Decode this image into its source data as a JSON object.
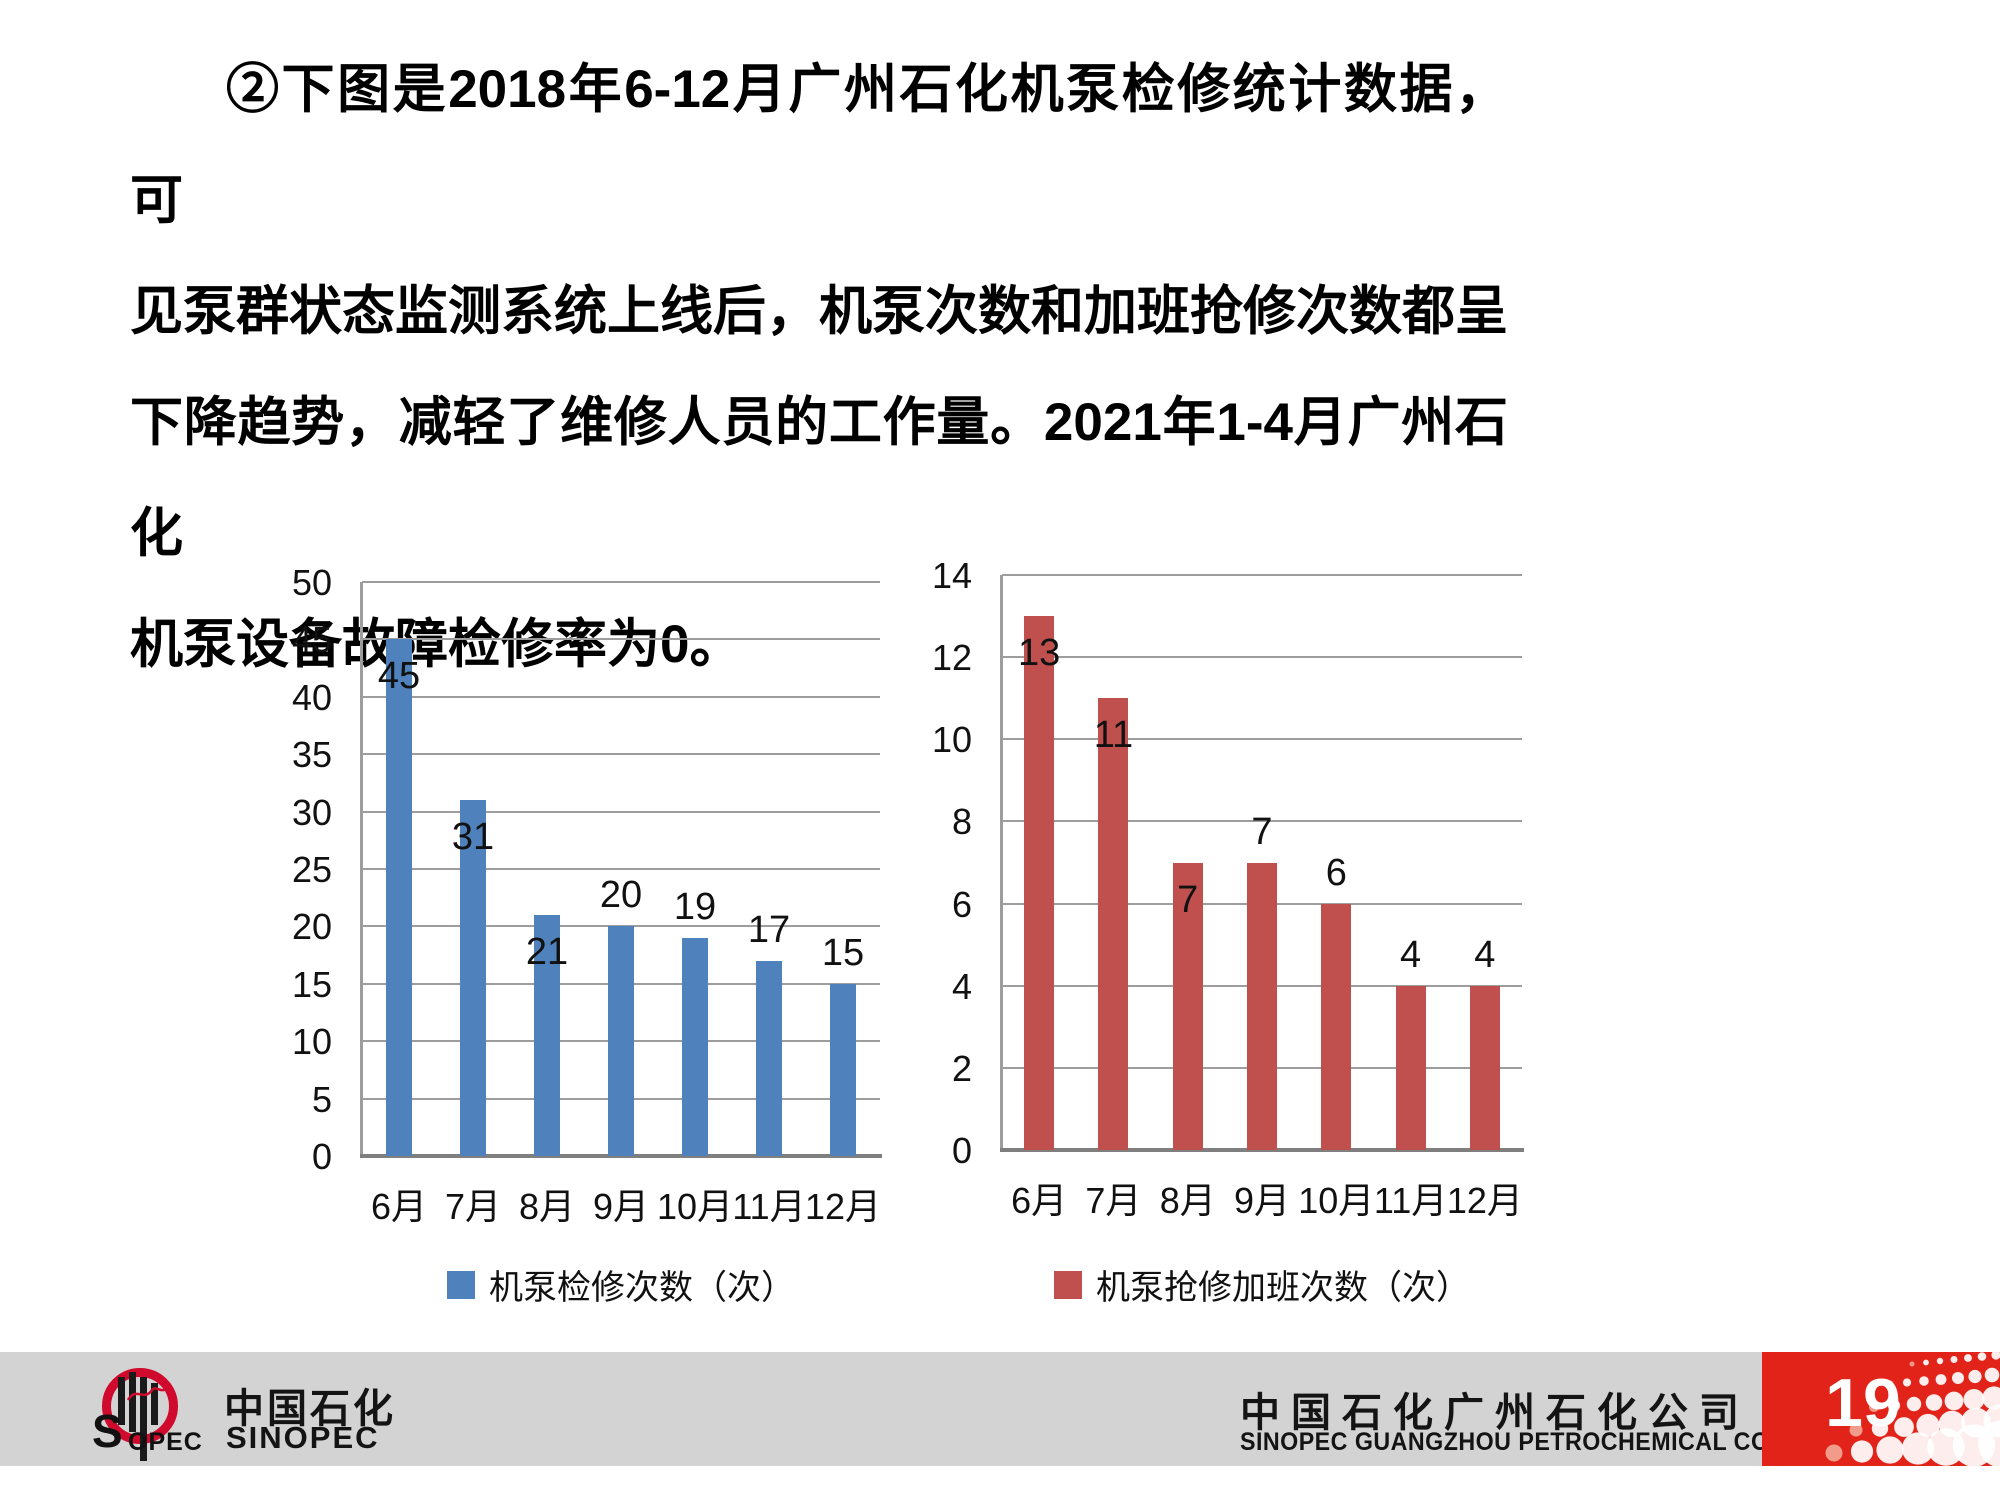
{
  "paragraph": {
    "lines": [
      "②下图是2018年6-12月广州石化机泵检修统计数据，可",
      "见泵群状态监测系统上线后，机泵次数和加班抢修次数都呈",
      "下降趋势，减轻了维修人员的工作量。2021年1-4月广州石化",
      "机泵设备故障检修率为0。"
    ]
  },
  "chart_data": [
    {
      "type": "bar",
      "title": "",
      "categories": [
        "6月",
        "7月",
        "8月",
        "9月",
        "10月",
        "11月",
        "12月"
      ],
      "values": [
        45,
        31,
        21,
        20,
        19,
        17,
        15
      ],
      "series_name": "机泵检修次数（次）",
      "bar_color": "#4f81bd",
      "ylim": [
        0,
        50
      ],
      "ytick_step": 5,
      "grid": true,
      "data_labels": true,
      "label_placement": [
        "inside",
        "inside",
        "inside",
        "outside",
        "outside",
        "outside",
        "outside"
      ],
      "legend_position": "bottom"
    },
    {
      "type": "bar",
      "title": "",
      "categories": [
        "6月",
        "7月",
        "8月",
        "9月",
        "10月",
        "11月",
        "12月"
      ],
      "values": [
        13,
        11,
        7,
        7,
        6,
        4,
        4
      ],
      "series_name": "机泵抢修加班次数（次）",
      "bar_color": "#c0504d",
      "ylim": [
        0,
        14
      ],
      "ytick_step": 2,
      "grid": true,
      "data_labels": true,
      "label_placement": [
        "inside",
        "inside",
        "inside",
        "outside",
        "outside",
        "outside",
        "outside"
      ],
      "legend_position": "bottom"
    }
  ],
  "colors": {
    "gridline": "#9d9d9d",
    "axis": "#7f7f7f",
    "text": "#000000",
    "footer_band": "#d3d3d3",
    "footer_accent_red": "#e2231a",
    "page_number_color": "#ffffff",
    "logo_red": "#cf0a2c"
  },
  "footer": {
    "logo": {
      "cn": "中国石化",
      "en": "SINOPEC",
      "mark_s": "S",
      "mark_opec": "OPEC"
    },
    "company_cn": "中国石化广州石化公司",
    "company_en": "SINOPEC GUANGZHOU PETROCHEMICAL COMPANY",
    "page_number": "19"
  }
}
